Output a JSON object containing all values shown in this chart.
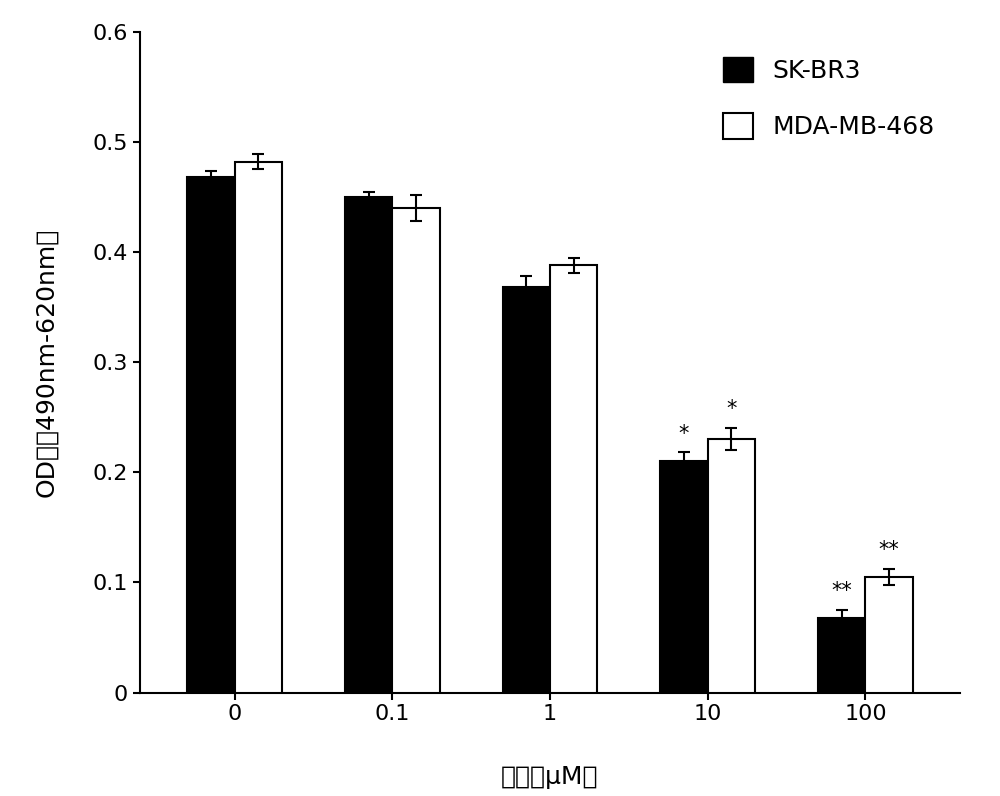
{
  "categories": [
    "0",
    "0.1",
    "1",
    "10",
    "100"
  ],
  "skbr3_values": [
    0.468,
    0.45,
    0.368,
    0.21,
    0.068
  ],
  "skbr3_errors": [
    0.006,
    0.005,
    0.01,
    0.008,
    0.007
  ],
  "mda_values": [
    0.482,
    0.44,
    0.388,
    0.23,
    0.105
  ],
  "mda_errors": [
    0.007,
    0.012,
    0.007,
    0.01,
    0.007
  ],
  "skbr3_color": "#000000",
  "mda_color": "#ffffff",
  "mda_edgecolor": "#000000",
  "ylabel": "OD値（490nm-620nm）",
  "xlabel": "浓度（μM）",
  "ylim": [
    0,
    0.6
  ],
  "yticks": [
    0,
    0.1,
    0.2,
    0.3,
    0.4,
    0.5,
    0.6
  ],
  "legend_labels": [
    "SK-BR3",
    "MDA-MB-468"
  ],
  "bar_width": 0.3,
  "annotations_skbr3": [
    "",
    "",
    "",
    "*",
    "**"
  ],
  "annotations_mda": [
    "",
    "",
    "",
    "*",
    "**"
  ],
  "figsize": [
    10.0,
    7.96
  ],
  "dpi": 100,
  "label_fontsize": 18,
  "tick_fontsize": 16,
  "legend_fontsize": 18,
  "annot_fontsize": 15
}
